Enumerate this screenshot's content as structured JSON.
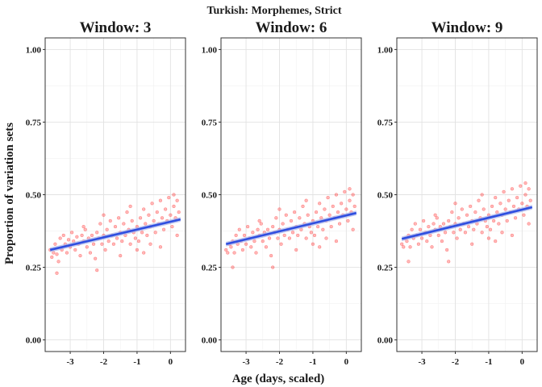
{
  "chart_data": {
    "type": "scatter",
    "title": "Turkish: Morphemes, Strict",
    "xlabel": "Age (days, scaled)",
    "ylabel": "Proportion of variation sets",
    "xlim": [
      -3.75,
      0.45
    ],
    "ylim": [
      -0.04,
      1.04
    ],
    "xticks": [
      -3,
      -2,
      -1,
      0
    ],
    "yticks": [
      0.0,
      0.25,
      0.5,
      0.75,
      1.0
    ],
    "ytick_labels": [
      "0.00",
      "0.25",
      "0.50",
      "0.75",
      "1.00"
    ],
    "grid": true,
    "point_color": "#ff3333",
    "line_color": "#2f4fe0",
    "band_color": "#aab4e8",
    "panels": [
      {
        "title": "Window: 3",
        "fit": {
          "x": [
            -3.6,
            0.3
          ],
          "y": [
            0.31,
            0.415
          ],
          "se": 0.008
        },
        "points": [
          [
            -3.6,
            0.31
          ],
          [
            -3.55,
            0.285
          ],
          [
            -3.5,
            0.3
          ],
          [
            -3.45,
            0.33
          ],
          [
            -3.4,
            0.295
          ],
          [
            -3.35,
            0.27
          ],
          [
            -3.3,
            0.35
          ],
          [
            -3.25,
            0.31
          ],
          [
            -3.2,
            0.36
          ],
          [
            -3.15,
            0.33
          ],
          [
            -3.1,
            0.3
          ],
          [
            -3.05,
            0.345
          ],
          [
            -3.0,
            0.32
          ],
          [
            -2.95,
            0.37
          ],
          [
            -2.9,
            0.34
          ],
          [
            -2.85,
            0.31
          ],
          [
            -2.8,
            0.355
          ],
          [
            -2.75,
            0.33
          ],
          [
            -2.7,
            0.29
          ],
          [
            -2.65,
            0.36
          ],
          [
            -2.6,
            0.34
          ],
          [
            -2.55,
            0.38
          ],
          [
            -2.5,
            0.32
          ],
          [
            -2.45,
            0.35
          ],
          [
            -2.4,
            0.3
          ],
          [
            -2.35,
            0.36
          ],
          [
            -2.3,
            0.33
          ],
          [
            -2.25,
            0.28
          ],
          [
            -2.2,
            0.37
          ],
          [
            -2.15,
            0.35
          ],
          [
            -2.1,
            0.4
          ],
          [
            -2.05,
            0.33
          ],
          [
            -2.0,
            0.36
          ],
          [
            -1.95,
            0.31
          ],
          [
            -1.9,
            0.38
          ],
          [
            -1.85,
            0.34
          ],
          [
            -1.8,
            0.41
          ],
          [
            -1.75,
            0.36
          ],
          [
            -1.7,
            0.33
          ],
          [
            -1.65,
            0.39
          ],
          [
            -1.6,
            0.35
          ],
          [
            -1.55,
            0.42
          ],
          [
            -1.5,
            0.37
          ],
          [
            -1.45,
            0.34
          ],
          [
            -1.4,
            0.4
          ],
          [
            -1.35,
            0.36
          ],
          [
            -1.3,
            0.44
          ],
          [
            -1.25,
            0.38
          ],
          [
            -1.2,
            0.33
          ],
          [
            -1.15,
            0.41
          ],
          [
            -1.1,
            0.37
          ],
          [
            -1.05,
            0.35
          ],
          [
            -1.0,
            0.39
          ],
          [
            -0.95,
            0.34
          ],
          [
            -0.9,
            0.42
          ],
          [
            -0.85,
            0.37
          ],
          [
            -0.8,
            0.45
          ],
          [
            -0.75,
            0.4
          ],
          [
            -0.7,
            0.36
          ],
          [
            -0.65,
            0.43
          ],
          [
            -0.6,
            0.39
          ],
          [
            -0.55,
            0.47
          ],
          [
            -0.5,
            0.41
          ],
          [
            -0.45,
            0.37
          ],
          [
            -0.4,
            0.44
          ],
          [
            -0.35,
            0.4
          ],
          [
            -0.3,
            0.48
          ],
          [
            -0.25,
            0.42
          ],
          [
            -0.2,
            0.38
          ],
          [
            -0.15,
            0.45
          ],
          [
            -0.1,
            0.41
          ],
          [
            -0.05,
            0.49
          ],
          [
            0.0,
            0.43
          ],
          [
            0.05,
            0.39
          ],
          [
            0.1,
            0.46
          ],
          [
            0.15,
            0.42
          ],
          [
            0.2,
            0.48
          ],
          [
            0.25,
            0.44
          ],
          [
            -2.0,
            0.43
          ],
          [
            -1.2,
            0.46
          ],
          [
            -0.8,
            0.3
          ],
          [
            -0.3,
            0.32
          ],
          [
            -3.4,
            0.23
          ],
          [
            -2.2,
            0.24
          ],
          [
            0.1,
            0.5
          ],
          [
            -1.5,
            0.29
          ],
          [
            -2.6,
            0.39
          ],
          [
            -0.6,
            0.33
          ],
          [
            0.2,
            0.36
          ],
          [
            -1.0,
            0.31
          ]
        ]
      },
      {
        "title": "Window: 6",
        "fit": {
          "x": [
            -3.6,
            0.3
          ],
          "y": [
            0.33,
            0.437
          ],
          "se": 0.008
        },
        "points": [
          [
            -3.6,
            0.31
          ],
          [
            -3.55,
            0.3
          ],
          [
            -3.5,
            0.33
          ],
          [
            -3.45,
            0.32
          ],
          [
            -3.4,
            0.34
          ],
          [
            -3.35,
            0.3
          ],
          [
            -3.3,
            0.36
          ],
          [
            -3.25,
            0.33
          ],
          [
            -3.2,
            0.38
          ],
          [
            -3.15,
            0.34
          ],
          [
            -3.1,
            0.31
          ],
          [
            -3.05,
            0.36
          ],
          [
            -3.0,
            0.33
          ],
          [
            -2.95,
            0.39
          ],
          [
            -2.9,
            0.35
          ],
          [
            -2.85,
            0.32
          ],
          [
            -2.8,
            0.37
          ],
          [
            -2.75,
            0.34
          ],
          [
            -2.7,
            0.3
          ],
          [
            -2.65,
            0.38
          ],
          [
            -2.6,
            0.36
          ],
          [
            -2.55,
            0.4
          ],
          [
            -2.5,
            0.34
          ],
          [
            -2.45,
            0.37
          ],
          [
            -2.4,
            0.32
          ],
          [
            -2.35,
            0.38
          ],
          [
            -2.3,
            0.35
          ],
          [
            -2.25,
            0.29
          ],
          [
            -2.2,
            0.39
          ],
          [
            -2.15,
            0.37
          ],
          [
            -2.1,
            0.42
          ],
          [
            -2.05,
            0.35
          ],
          [
            -2.0,
            0.38
          ],
          [
            -1.95,
            0.33
          ],
          [
            -1.9,
            0.4
          ],
          [
            -1.85,
            0.36
          ],
          [
            -1.8,
            0.43
          ],
          [
            -1.75,
            0.38
          ],
          [
            -1.7,
            0.35
          ],
          [
            -1.65,
            0.41
          ],
          [
            -1.6,
            0.37
          ],
          [
            -1.55,
            0.44
          ],
          [
            -1.5,
            0.39
          ],
          [
            -1.45,
            0.36
          ],
          [
            -1.4,
            0.42
          ],
          [
            -1.35,
            0.38
          ],
          [
            -1.3,
            0.46
          ],
          [
            -1.25,
            0.4
          ],
          [
            -1.2,
            0.35
          ],
          [
            -1.15,
            0.43
          ],
          [
            -1.1,
            0.39
          ],
          [
            -1.05,
            0.37
          ],
          [
            -1.0,
            0.41
          ],
          [
            -0.95,
            0.36
          ],
          [
            -0.9,
            0.44
          ],
          [
            -0.85,
            0.39
          ],
          [
            -0.8,
            0.47
          ],
          [
            -0.75,
            0.42
          ],
          [
            -0.7,
            0.38
          ],
          [
            -0.65,
            0.45
          ],
          [
            -0.6,
            0.41
          ],
          [
            -0.55,
            0.49
          ],
          [
            -0.5,
            0.43
          ],
          [
            -0.45,
            0.39
          ],
          [
            -0.4,
            0.46
          ],
          [
            -0.35,
            0.42
          ],
          [
            -0.3,
            0.5
          ],
          [
            -0.25,
            0.44
          ],
          [
            -0.2,
            0.4
          ],
          [
            -0.15,
            0.47
          ],
          [
            -0.1,
            0.43
          ],
          [
            -0.05,
            0.51
          ],
          [
            0.0,
            0.45
          ],
          [
            0.05,
            0.41
          ],
          [
            0.1,
            0.48
          ],
          [
            0.15,
            0.44
          ],
          [
            0.2,
            0.5
          ],
          [
            0.25,
            0.46
          ],
          [
            -2.0,
            0.45
          ],
          [
            -1.2,
            0.48
          ],
          [
            -0.8,
            0.32
          ],
          [
            -0.3,
            0.34
          ],
          [
            -3.4,
            0.25
          ],
          [
            -2.2,
            0.25
          ],
          [
            0.1,
            0.52
          ],
          [
            -1.5,
            0.31
          ],
          [
            -2.6,
            0.41
          ],
          [
            -0.6,
            0.35
          ],
          [
            0.2,
            0.38
          ],
          [
            -1.0,
            0.33
          ]
        ]
      },
      {
        "title": "Window: 9",
        "fit": {
          "x": [
            -3.6,
            0.3
          ],
          "y": [
            0.348,
            0.457
          ],
          "se": 0.008
        },
        "points": [
          [
            -3.6,
            0.33
          ],
          [
            -3.55,
            0.32
          ],
          [
            -3.5,
            0.35
          ],
          [
            -3.45,
            0.34
          ],
          [
            -3.4,
            0.36
          ],
          [
            -3.35,
            0.32
          ],
          [
            -3.3,
            0.38
          ],
          [
            -3.25,
            0.35
          ],
          [
            -3.2,
            0.4
          ],
          [
            -3.15,
            0.36
          ],
          [
            -3.1,
            0.33
          ],
          [
            -3.05,
            0.38
          ],
          [
            -3.0,
            0.35
          ],
          [
            -2.95,
            0.41
          ],
          [
            -2.9,
            0.37
          ],
          [
            -2.85,
            0.34
          ],
          [
            -2.8,
            0.39
          ],
          [
            -2.75,
            0.36
          ],
          [
            -2.7,
            0.32
          ],
          [
            -2.65,
            0.4
          ],
          [
            -2.6,
            0.38
          ],
          [
            -2.55,
            0.42
          ],
          [
            -2.5,
            0.36
          ],
          [
            -2.45,
            0.39
          ],
          [
            -2.4,
            0.34
          ],
          [
            -2.35,
            0.4
          ],
          [
            -2.3,
            0.37
          ],
          [
            -2.25,
            0.31
          ],
          [
            -2.2,
            0.41
          ],
          [
            -2.15,
            0.39
          ],
          [
            -2.1,
            0.44
          ],
          [
            -2.05,
            0.37
          ],
          [
            -2.0,
            0.4
          ],
          [
            -1.95,
            0.35
          ],
          [
            -1.9,
            0.42
          ],
          [
            -1.85,
            0.38
          ],
          [
            -1.8,
            0.45
          ],
          [
            -1.75,
            0.4
          ],
          [
            -1.7,
            0.37
          ],
          [
            -1.65,
            0.43
          ],
          [
            -1.6,
            0.39
          ],
          [
            -1.55,
            0.46
          ],
          [
            -1.5,
            0.41
          ],
          [
            -1.45,
            0.38
          ],
          [
            -1.4,
            0.44
          ],
          [
            -1.35,
            0.4
          ],
          [
            -1.3,
            0.48
          ],
          [
            -1.25,
            0.42
          ],
          [
            -1.2,
            0.37
          ],
          [
            -1.15,
            0.45
          ],
          [
            -1.1,
            0.41
          ],
          [
            -1.05,
            0.39
          ],
          [
            -1.0,
            0.43
          ],
          [
            -0.95,
            0.38
          ],
          [
            -0.9,
            0.46
          ],
          [
            -0.85,
            0.41
          ],
          [
            -0.8,
            0.49
          ],
          [
            -0.75,
            0.44
          ],
          [
            -0.7,
            0.4
          ],
          [
            -0.65,
            0.47
          ],
          [
            -0.6,
            0.43
          ],
          [
            -0.55,
            0.51
          ],
          [
            -0.5,
            0.45
          ],
          [
            -0.45,
            0.41
          ],
          [
            -0.4,
            0.48
          ],
          [
            -0.35,
            0.44
          ],
          [
            -0.3,
            0.52
          ],
          [
            -0.25,
            0.46
          ],
          [
            -0.2,
            0.42
          ],
          [
            -0.15,
            0.49
          ],
          [
            -0.1,
            0.45
          ],
          [
            -0.05,
            0.53
          ],
          [
            0.0,
            0.47
          ],
          [
            0.05,
            0.43
          ],
          [
            0.1,
            0.5
          ],
          [
            0.15,
            0.46
          ],
          [
            0.2,
            0.52
          ],
          [
            0.25,
            0.48
          ],
          [
            -2.0,
            0.47
          ],
          [
            -1.2,
            0.5
          ],
          [
            -0.8,
            0.34
          ],
          [
            -0.3,
            0.36
          ],
          [
            -3.4,
            0.27
          ],
          [
            -2.2,
            0.27
          ],
          [
            0.1,
            0.54
          ],
          [
            -1.5,
            0.33
          ],
          [
            -2.6,
            0.43
          ],
          [
            -0.6,
            0.37
          ],
          [
            0.2,
            0.4
          ],
          [
            -1.0,
            0.35
          ]
        ]
      }
    ]
  }
}
